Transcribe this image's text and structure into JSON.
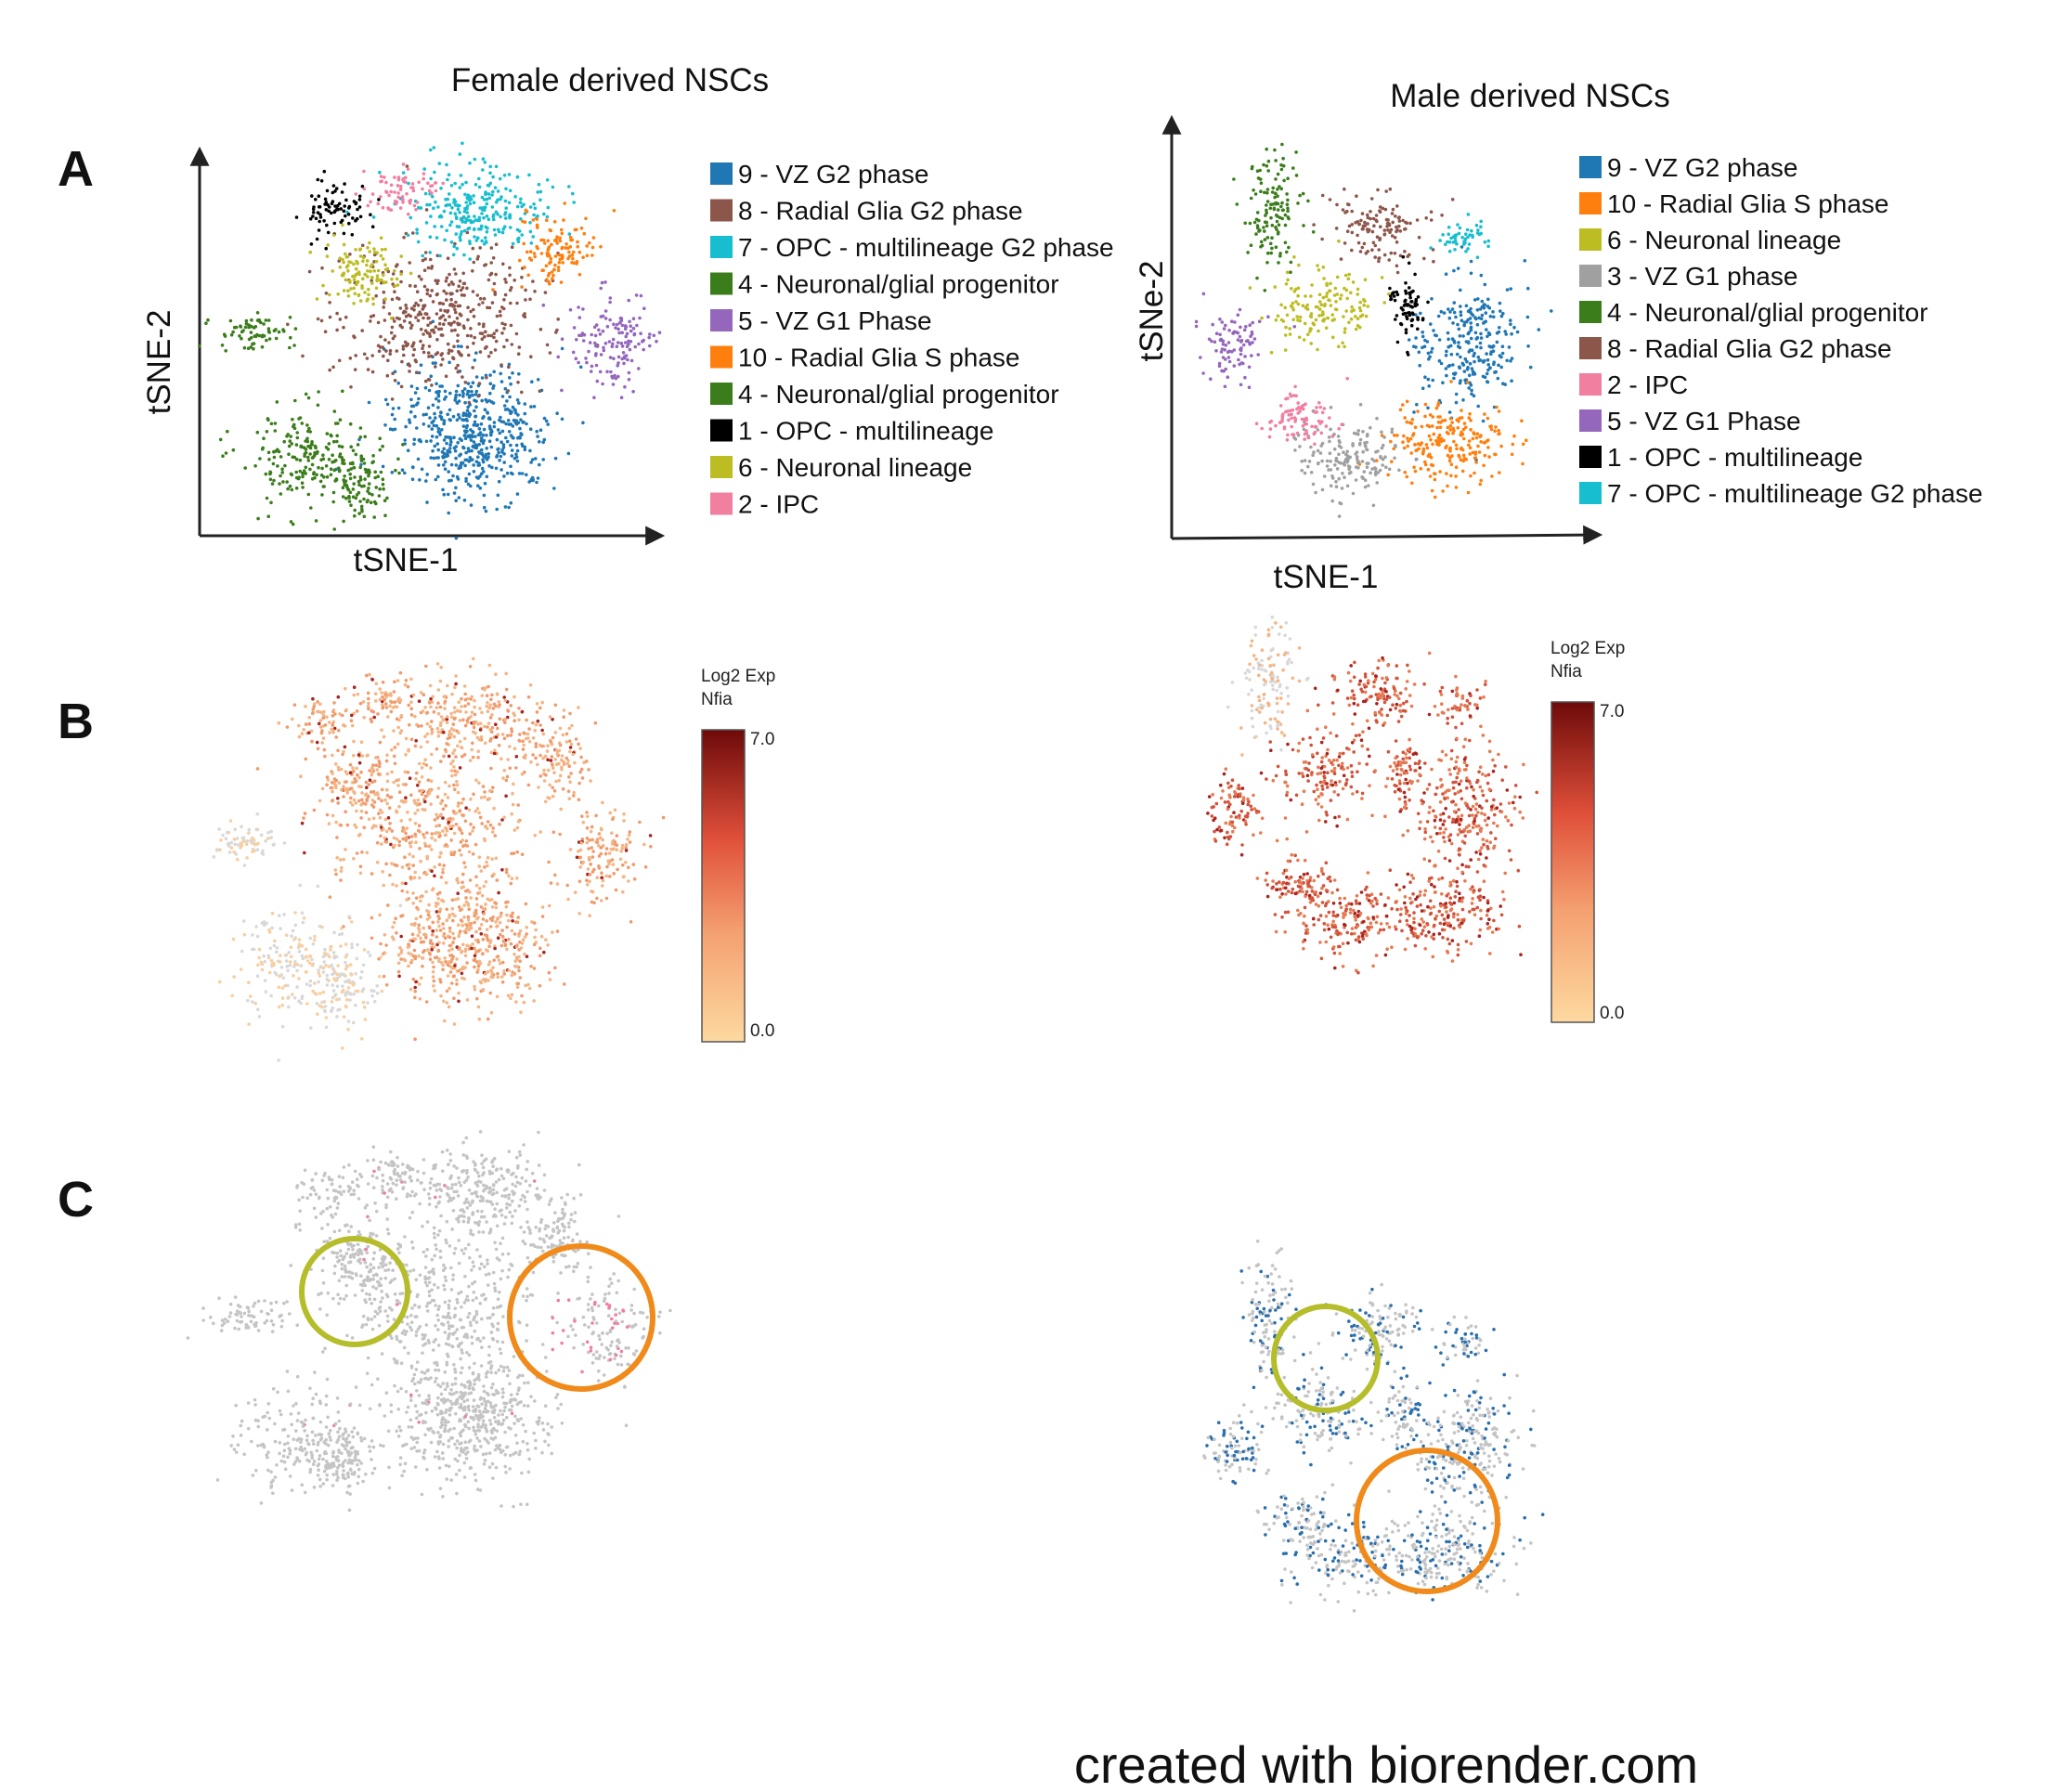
{
  "chart_data": [
    {
      "type": "scatter",
      "panel": "A",
      "title": "Female derived NSCs",
      "xlabel": "tSNE-1",
      "ylabel": "tSNE-2",
      "legend_position": "right",
      "series": [
        {
          "name": "9 - VZ G2 phase",
          "color": "#1f77b4"
        },
        {
          "name": "8 - Radial Glia G2 phase",
          "color": "#8c564b"
        },
        {
          "name": "7 - OPC - multilineage G2 phase",
          "color": "#17becf"
        },
        {
          "name": "4 - Neuronal/glial progenitor",
          "color": "#3a7d1a"
        },
        {
          "name": "5 - VZ G1 Phase",
          "color": "#9467bd"
        },
        {
          "name": "10 - Radial Glia S phase",
          "color": "#ff7f0e"
        },
        {
          "name": "4 - Neuronal/glial progenitor",
          "color": "#3a7d1a"
        },
        {
          "name": "1 - OPC - multilineage",
          "color": "#000000"
        },
        {
          "name": "6 - Neuronal lineage",
          "color": "#bcbd22"
        },
        {
          "name": "2 - IPC",
          "color": "#f07fa0"
        }
      ]
    },
    {
      "type": "scatter",
      "panel": "A",
      "title": "Male derived NSCs",
      "xlabel": "tSNE-1",
      "ylabel": "tSNe-2",
      "legend_position": "right",
      "series": [
        {
          "name": "9 - VZ G2 phase",
          "color": "#1f77b4"
        },
        {
          "name": "10 - Radial Glia S phase",
          "color": "#ff7f0e"
        },
        {
          "name": "6 - Neuronal lineage",
          "color": "#bcbd22"
        },
        {
          "name": "3 - VZ G1 phase",
          "color": "#a0a0a0"
        },
        {
          "name": "4 - Neuronal/glial progenitor",
          "color": "#3a7d1a"
        },
        {
          "name": "8 - Radial Glia G2 phase",
          "color": "#8c564b"
        },
        {
          "name": "2 - IPC",
          "color": "#f07fa0"
        },
        {
          "name": "5 - VZ G1 Phase",
          "color": "#9467bd"
        },
        {
          "name": "1 - OPC - multilineage",
          "color": "#000000"
        },
        {
          "name": "7 - OPC - multilineage G2 phase",
          "color": "#17becf"
        }
      ]
    },
    {
      "type": "scatter",
      "panel": "B",
      "colorbar": {
        "title_line1": "Log2 Exp",
        "title_line2": "Nfia",
        "max_label": "7.0",
        "min_label": "0.0",
        "range": [
          0,
          7
        ]
      },
      "color_low": "#fbd49a",
      "color_high": "#7a0c0c"
    },
    {
      "type": "scatter",
      "panel": "B",
      "colorbar": {
        "title_line1": "Log2 Exp",
        "title_line2": "Nfia",
        "max_label": "7.0",
        "min_label": "0.0",
        "range": [
          0,
          7
        ]
      },
      "color_low": "#fbd49a",
      "color_high": "#7a0c0c"
    },
    {
      "type": "scatter",
      "panel": "C",
      "base_color": "#c4c4c4",
      "highlight_color": "#f07fa0",
      "circle_colors": [
        "#b5bd2a",
        "#f08a1a"
      ]
    },
    {
      "type": "scatter",
      "panel": "C",
      "base_color": "#c4c4c4",
      "highlight_color": "#2a6fad",
      "circle_colors": [
        "#b5bd2a",
        "#f08a1a"
      ]
    }
  ],
  "panels": {
    "a": "A",
    "b": "B",
    "c": "C"
  },
  "credit": "created with biorender.com"
}
